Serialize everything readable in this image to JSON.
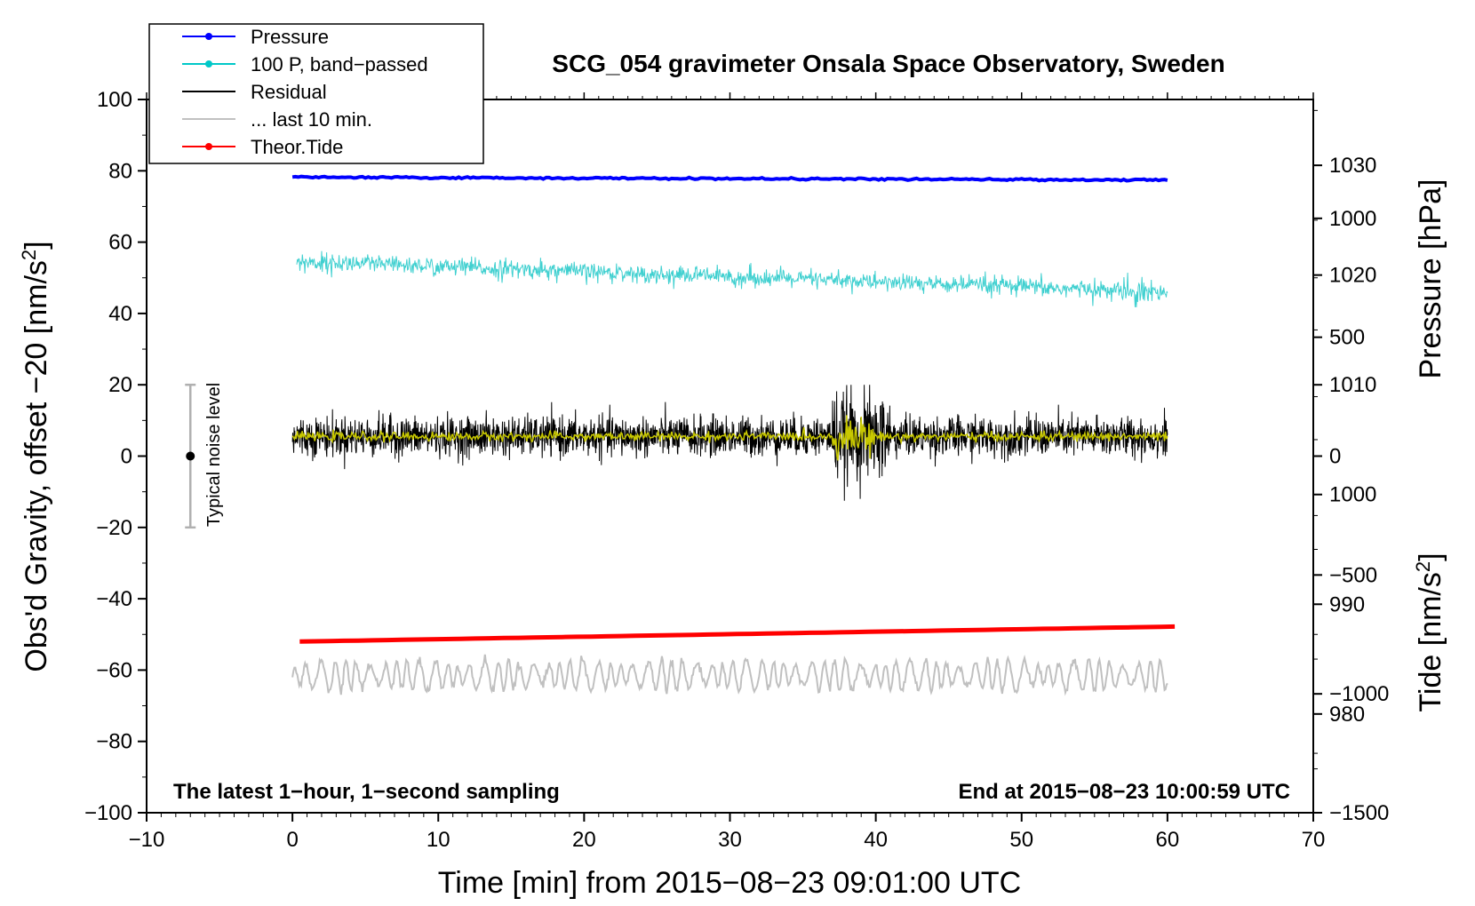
{
  "chart_data": {
    "type": "line",
    "title": "SCG_054 gravimeter Onsala Space Observatory, Sweden",
    "xlabel": "Time [min] from 2015−08−23 09:01:00 UTC",
    "ylabel_main": "Obs'd Gravity, offset −20 [nm/s²]",
    "ylabel_main_prefix": "Obs'd Gravity, offset −20 [nm/s",
    "ylabel_main_suffix": "]",
    "ylabel_pressure": "Pressure [hPa]",
    "ylabel_tide": "Tide [nm/s²]",
    "ylabel_tide_prefix": "Tide [nm/s",
    "ylabel_tide_suffix": "]",
    "superscript": "2",
    "xlim": [
      -10,
      70
    ],
    "ylim": [
      -100,
      100
    ],
    "pressure_lim": [
      971,
      1036
    ],
    "tide_lim": [
      -1500,
      1500
    ],
    "x_ticks": [
      {
        "value": -10,
        "label": "−10"
      },
      {
        "value": 0,
        "label": "0"
      },
      {
        "value": 10,
        "label": "10"
      },
      {
        "value": 20,
        "label": "20"
      },
      {
        "value": 30,
        "label": "30"
      },
      {
        "value": 40,
        "label": "40"
      },
      {
        "value": 50,
        "label": "50"
      },
      {
        "value": 60,
        "label": "60"
      },
      {
        "value": 70,
        "label": "70"
      }
    ],
    "y_ticks": [
      {
        "value": 100,
        "label": "100"
      },
      {
        "value": 80,
        "label": "80"
      },
      {
        "value": 60,
        "label": "60"
      },
      {
        "value": 40,
        "label": "40"
      },
      {
        "value": 20,
        "label": "20"
      },
      {
        "value": 0,
        "label": "0"
      },
      {
        "value": -20,
        "label": "−20"
      },
      {
        "value": -40,
        "label": "−40"
      },
      {
        "value": -60,
        "label": "−60"
      },
      {
        "value": -80,
        "label": "−80"
      },
      {
        "value": -100,
        "label": "−100"
      }
    ],
    "pressure_ticks": [
      {
        "value": 1030,
        "label": "1030"
      },
      {
        "value": 1020,
        "label": "1020"
      },
      {
        "value": 1010,
        "label": "1010"
      },
      {
        "value": 1000,
        "label": "1000"
      },
      {
        "value": 990,
        "label": "990"
      },
      {
        "value": 980,
        "label": "980"
      }
    ],
    "tide_ticks": [
      {
        "value": 1000,
        "label": "1000"
      },
      {
        "value": 500,
        "label": "500"
      },
      {
        "value": 0,
        "label": "0"
      },
      {
        "value": -500,
        "label": "−500"
      },
      {
        "value": -1000,
        "label": "−1000"
      },
      {
        "value": -1500,
        "label": "−1500"
      }
    ],
    "legend": [
      {
        "label": "Pressure",
        "color": "#0000ff",
        "marker": true
      },
      {
        "label": "100 P, band−passed",
        "color": "#00c8c8",
        "marker": true
      },
      {
        "label": "Residual",
        "color": "#000000",
        "marker": false
      },
      {
        "label": "... last 10 min.",
        "color": "#c0c0c0",
        "marker": false
      },
      {
        "label": "Theor.Tide",
        "color": "#ff0000",
        "marker": true
      }
    ],
    "series": [
      {
        "name": "Pressure",
        "color": "#0000ff",
        "x_start": 0,
        "x_end": 60,
        "y_start": 78.2,
        "y_end": 77.4
      },
      {
        "name": "100 P, band-passed",
        "color": "#40d0d0",
        "x_start": 0,
        "x_end": 60,
        "y_start": 54.5,
        "y_end": 46,
        "amplitude": 3
      },
      {
        "name": "Residual",
        "color": "#000000",
        "x_start": 0,
        "x_end": 60,
        "y_center": 5.5,
        "amplitude": 6
      },
      {
        "name": "Residual smoothed",
        "color": "#c8c800",
        "x_start": 0,
        "x_end": 60,
        "y_center": 5.5
      },
      {
        "name": "Theor.Tide",
        "color": "#ff0000",
        "x_start": 0.5,
        "x_end": 60.5,
        "y_start": -52,
        "y_end": -47.8
      },
      {
        "name": "... last 10 min.",
        "color": "#c0c0c0",
        "x_start": 0,
        "x_end": 60,
        "y_center": -61.5,
        "amplitude": 4.5
      }
    ],
    "noise_bar": {
      "x": -7,
      "y_low": -20,
      "y_high": 20,
      "y_mid": 0,
      "label": "Typical noise level"
    },
    "notes": {
      "left": "The latest 1−hour, 1−second sampling",
      "right": "End at 2015−08−23 10:00:59 UTC"
    }
  }
}
